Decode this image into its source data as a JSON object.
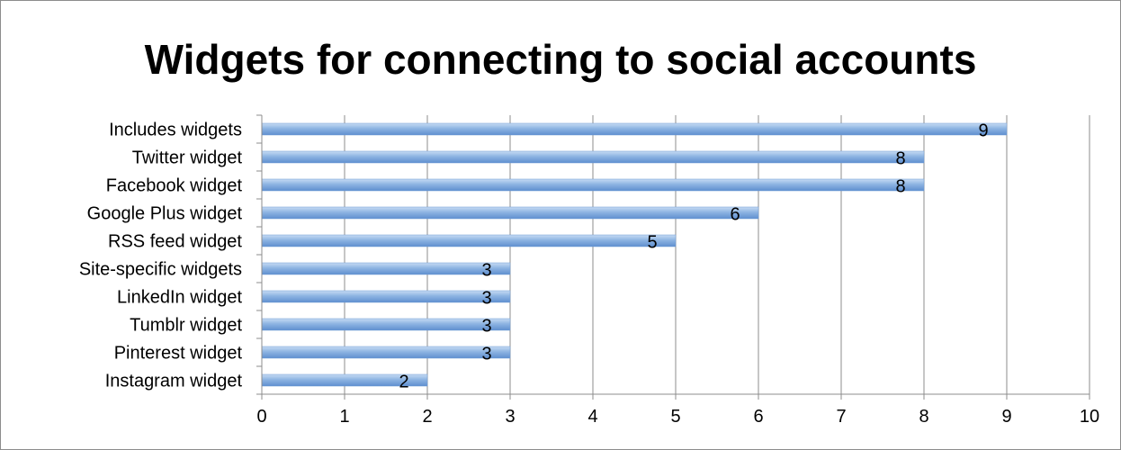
{
  "chart_data": {
    "type": "bar",
    "orientation": "horizontal",
    "title": "Widgets for connecting to social accounts",
    "categories": [
      "Includes widgets",
      "Twitter widget",
      "Facebook widget",
      "Google Plus widget",
      "RSS feed widget",
      "Site-specific widgets",
      "LinkedIn widget",
      "Tumblr widget",
      "Pinterest widget",
      "Instagram widget"
    ],
    "values": [
      9,
      8,
      8,
      6,
      5,
      3,
      3,
      3,
      3,
      2
    ],
    "xlim": [
      0,
      10
    ],
    "xticks": [
      "0",
      "1",
      "2",
      "3",
      "4",
      "5",
      "6",
      "7",
      "8",
      "9",
      "10"
    ],
    "grid": "vertical",
    "legend": "none",
    "data_labels": true,
    "bar_color": "#8db4e2"
  }
}
